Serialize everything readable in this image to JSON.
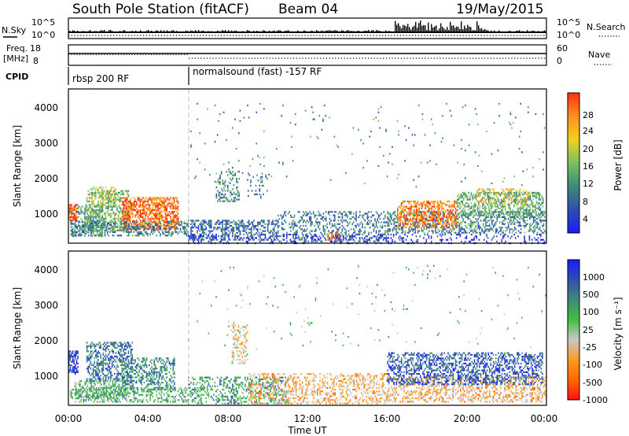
{
  "header": {
    "station": "South Pole Station (fitACF)",
    "beam": "Beam 04",
    "date": "19/May/2015"
  },
  "params": {
    "nsky_label": "N.Sky",
    "nsky_ticks": [
      "10^5",
      "10^0"
    ],
    "nsearch_label": "N.Search",
    "nsearch_ticks": [
      "10^5",
      "10^0"
    ],
    "freq_label": "Freq.",
    "freq_unit": "[MHz]",
    "freq_ticks": [
      "18",
      "8"
    ],
    "nave_label": "Nave",
    "nave_ticks": [
      "60",
      "0"
    ],
    "cpid_label": "CPID",
    "cpid_segments": [
      {
        "label": "rbsp 200 RF",
        "start_hour": 0
      },
      {
        "label": "normalsound (fast) -157 RF",
        "start_hour": 6
      }
    ]
  },
  "panels": {
    "power": {
      "ylabel": "Slant Range [km]",
      "yticks": [
        "4000",
        "3000",
        "2000",
        "1000"
      ],
      "cbar_label": "Power [dB]",
      "cbar_ticks": [
        "28",
        "24",
        "20",
        "16",
        "12",
        "8",
        "4"
      ]
    },
    "velocity": {
      "ylabel": "Slant Range [km]",
      "yticks": [
        "4000",
        "3000",
        "2000",
        "1000"
      ],
      "cbar_label": "Velocity [m s⁻¹]",
      "cbar_ticks": [
        "1000",
        "500",
        "100",
        "25",
        "-25",
        "-100",
        "-500",
        "-1000"
      ]
    }
  },
  "xaxis": {
    "label": "Time UT",
    "ticks": [
      "00:00",
      "04:00",
      "08:00",
      "12:00",
      "16:00",
      "20:00",
      "00:00"
    ]
  },
  "chart_data": [
    {
      "type": "heatmap",
      "name": "Power",
      "x_range_hours": [
        0,
        24
      ],
      "y_range_km": [
        180,
        4600
      ],
      "z_range_db": [
        0,
        30
      ],
      "colors": [
        "#1a1aff",
        "#2f4fb0",
        "#3f8a7a",
        "#7ac060",
        "#f0d020",
        "#ff9020",
        "#ff3010"
      ],
      "regions": [
        {
          "t": [
            0.1,
            1.7
          ],
          "r": [
            400,
            1300
          ],
          "val": 12,
          "sp": 0.45
        },
        {
          "t": [
            0.9,
            3.0
          ],
          "r": [
            550,
            1700
          ],
          "val": 14,
          "sp": 0.5
        },
        {
          "t": [
            1.1,
            2.4
          ],
          "r": [
            1300,
            1800
          ],
          "val": 18,
          "sp": 0.35
        },
        {
          "t": [
            2.7,
            5.5
          ],
          "r": [
            600,
            1500
          ],
          "val": 25,
          "sp": 0.7
        },
        {
          "t": [
            0.0,
            0.4
          ],
          "r": [
            850,
            1300
          ],
          "val": 26,
          "sp": 0.7
        },
        {
          "t": [
            0.1,
            6.0
          ],
          "r": [
            380,
            820
          ],
          "val": 10,
          "sp": 0.45
        },
        {
          "t": [
            6.0,
            10.5
          ],
          "r": [
            300,
            850
          ],
          "val": 8,
          "sp": 0.45
        },
        {
          "t": [
            7.4,
            8.6
          ],
          "r": [
            1400,
            2250
          ],
          "val": 11,
          "sp": 0.35
        },
        {
          "t": [
            9.0,
            10.0
          ],
          "r": [
            1500,
            2200
          ],
          "val": 8,
          "sp": 0.12
        },
        {
          "t": [
            10.5,
            16.0
          ],
          "r": [
            250,
            1100
          ],
          "val": 9,
          "sp": 0.3
        },
        {
          "t": [
            13.0,
            13.6
          ],
          "r": [
            300,
            500
          ],
          "val": 24,
          "sp": 0.6
        },
        {
          "t": [
            16.0,
            24.0
          ],
          "r": [
            500,
            1100
          ],
          "val": 10,
          "sp": 0.45
        },
        {
          "t": [
            16.5,
            19.5
          ],
          "r": [
            650,
            1400
          ],
          "val": 24,
          "sp": 0.55
        },
        {
          "t": [
            19.5,
            23.8
          ],
          "r": [
            1000,
            1650
          ],
          "val": 13,
          "sp": 0.5
        },
        {
          "t": [
            20.5,
            23.2
          ],
          "r": [
            1300,
            1750
          ],
          "val": 20,
          "sp": 0.3
        },
        {
          "t": [
            6.0,
            24.0
          ],
          "r": [
            180,
            450
          ],
          "val": 4,
          "sp": 0.2
        },
        {
          "t": [
            6.0,
            24.0
          ],
          "r": [
            1800,
            4200
          ],
          "val": 10,
          "sp": 0.015
        }
      ]
    },
    {
      "type": "heatmap",
      "name": "Velocity",
      "x_range_hours": [
        0,
        24
      ],
      "y_range_km": [
        180,
        4600
      ],
      "z_range_ms": [
        -1000,
        1000
      ],
      "colors": [
        "#ff1010",
        "#ff6a00",
        "#ff9a20",
        "#c8c8c8",
        "#40c040",
        "#3f8a7a",
        "#2f4fb0",
        "#1a1aff"
      ],
      "regions": [
        {
          "t": [
            0.0,
            0.5
          ],
          "r": [
            1100,
            1750
          ],
          "val": 700,
          "sp": 0.6
        },
        {
          "t": [
            0.3,
            3.0
          ],
          "r": [
            400,
            900
          ],
          "val": 120,
          "sp": 0.5
        },
        {
          "t": [
            0.9,
            3.2
          ],
          "r": [
            900,
            2000
          ],
          "val": 500,
          "sp": 0.45
        },
        {
          "t": [
            2.7,
            5.3
          ],
          "r": [
            650,
            1550
          ],
          "val": 400,
          "sp": 0.4
        },
        {
          "t": [
            0.1,
            6.0
          ],
          "r": [
            300,
            700
          ],
          "val": 200,
          "sp": 0.4
        },
        {
          "t": [
            6.0,
            11.0
          ],
          "r": [
            250,
            1000
          ],
          "val": 300,
          "sp": 0.35
        },
        {
          "t": [
            8.2,
            9.0
          ],
          "r": [
            1400,
            2500
          ],
          "val": -200,
          "sp": 0.35
        },
        {
          "t": [
            9.0,
            16.0
          ],
          "r": [
            250,
            1100
          ],
          "val": -300,
          "sp": 0.35
        },
        {
          "t": [
            16.0,
            24.0
          ],
          "r": [
            300,
            1000
          ],
          "val": -300,
          "sp": 0.4
        },
        {
          "t": [
            16.0,
            23.8
          ],
          "r": [
            800,
            1700
          ],
          "val": 600,
          "sp": 0.45
        },
        {
          "t": [
            6.0,
            24.0
          ],
          "r": [
            1800,
            4200
          ],
          "val": 100,
          "sp": 0.012
        }
      ]
    }
  ]
}
